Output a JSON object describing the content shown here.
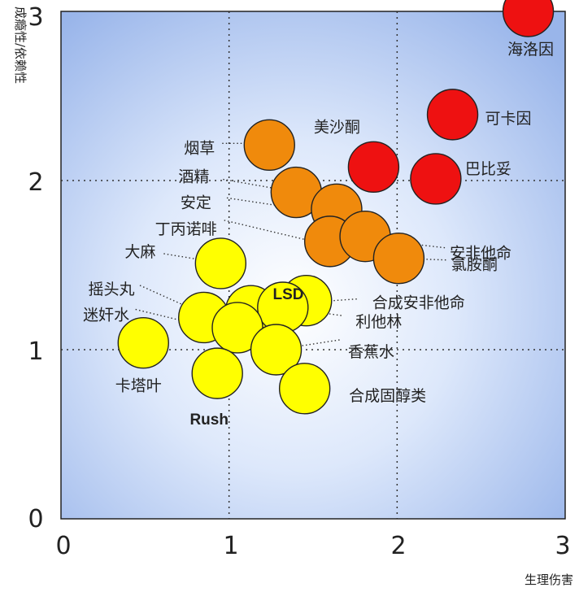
{
  "chart_data": {
    "type": "scatter",
    "xlabel": "生理伤害",
    "ylabel": "成瘾性/依赖性",
    "xlim": [
      0,
      3
    ],
    "ylim": [
      0,
      3
    ],
    "xticks": [
      "0",
      "1",
      "2",
      "3"
    ],
    "yticks": [
      "0",
      "1",
      "2",
      "3"
    ],
    "grid": "dotted at 1 and 2",
    "background": "blue radial gradient, light center",
    "colors": {
      "red": "#ee1111",
      "orange": "#f08a0c",
      "yellow": "#ffff00"
    },
    "points": [
      {
        "label": "海洛因",
        "x": 2.78,
        "y": 3.0,
        "color": "red"
      },
      {
        "label": "可卡因",
        "x": 2.33,
        "y": 2.39,
        "color": "red"
      },
      {
        "label": "巴比妥",
        "x": 2.23,
        "y": 2.01,
        "color": "red"
      },
      {
        "label": "美沙酮",
        "x": 1.86,
        "y": 2.08,
        "color": "red"
      },
      {
        "label": "烟草",
        "x": 1.24,
        "y": 2.21,
        "color": "orange"
      },
      {
        "label": "酒精",
        "x": 1.4,
        "y": 1.93,
        "color": "orange"
      },
      {
        "label": "安定",
        "x": 1.64,
        "y": 1.83,
        "color": "orange"
      },
      {
        "label": "丁丙诺啡",
        "x": 1.6,
        "y": 1.64,
        "color": "orange"
      },
      {
        "label": "安非他命",
        "x": 1.81,
        "y": 1.67,
        "color": "orange"
      },
      {
        "label": "氯胺酮",
        "x": 2.01,
        "y": 1.54,
        "color": "orange"
      },
      {
        "label": "大麻",
        "x": 0.95,
        "y": 1.51,
        "color": "yellow"
      },
      {
        "label": "LSD",
        "x": 1.13,
        "y": 1.23,
        "color": "yellow"
      },
      {
        "label": "合成安非他命",
        "x": 1.46,
        "y": 1.29,
        "color": "yellow"
      },
      {
        "label": "利他林",
        "x": 1.32,
        "y": 1.25,
        "color": "yellow"
      },
      {
        "label": "迷奸水",
        "x": 0.85,
        "y": 1.19,
        "color": "yellow"
      },
      {
        "label": "摇头丸",
        "x": 1.05,
        "y": 1.13,
        "color": "yellow"
      },
      {
        "label": "香蕉水",
        "x": 1.28,
        "y": 1.0,
        "color": "yellow"
      },
      {
        "label": "卡塔叶",
        "x": 0.49,
        "y": 1.04,
        "color": "yellow"
      },
      {
        "label": "Rush",
        "x": 0.93,
        "y": 0.86,
        "color": "yellow"
      },
      {
        "label": "合成固醇类",
        "x": 1.45,
        "y": 0.77,
        "color": "yellow"
      }
    ]
  }
}
